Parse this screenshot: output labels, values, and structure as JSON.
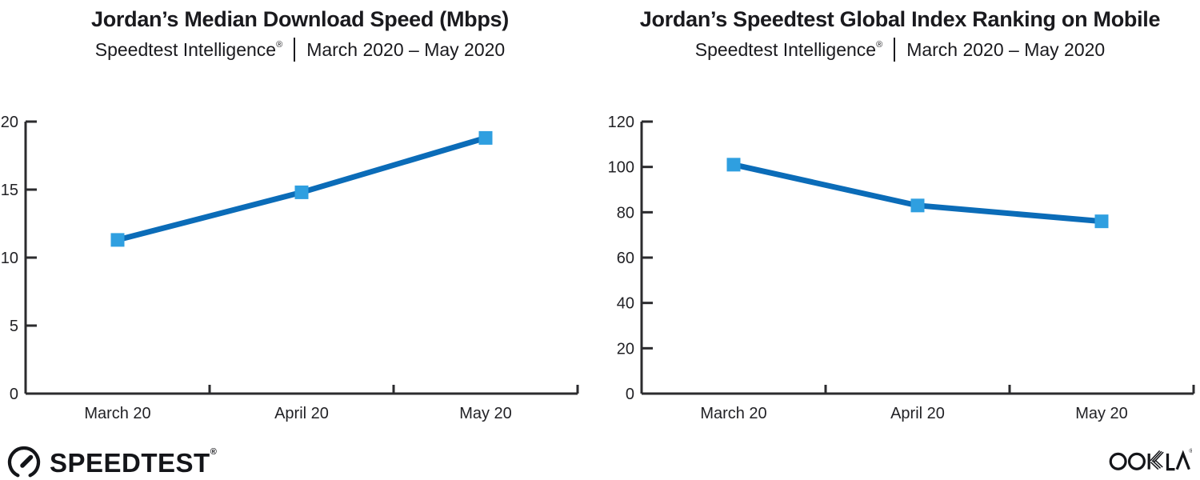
{
  "charts": [
    {
      "title": "Jordan’s Median Download Speed (Mbps)",
      "subtitle_brand": "Speedtest Intelligence",
      "subtitle_reg": "®",
      "subtitle_range": "March 2020 – May 2020"
    },
    {
      "title": "Jordan’s Speedtest Global Index Ranking on Mobile",
      "subtitle_brand": "Speedtest Intelligence",
      "subtitle_reg": "®",
      "subtitle_range": "March 2020 – May 2020"
    }
  ],
  "chart_data": [
    {
      "type": "line",
      "title": "Jordan’s Median Download Speed (Mbps)",
      "subtitle": "Speedtest Intelligence® | March 2020 – May 2020",
      "categories": [
        "March 20",
        "April 20",
        "May 20"
      ],
      "values": [
        11.3,
        14.8,
        18.8
      ],
      "xlabel": "",
      "ylabel": "",
      "ylim": [
        0,
        20
      ],
      "yticks": [
        0,
        5,
        10,
        15,
        20
      ],
      "grid": false,
      "legend": null,
      "marker": "square"
    },
    {
      "type": "line",
      "title": "Jordan’s Speedtest Global Index Ranking on Mobile",
      "subtitle": "Speedtest Intelligence® | March 2020 – May 2020",
      "categories": [
        "March 20",
        "April 20",
        "May 20"
      ],
      "values": [
        101,
        83,
        76
      ],
      "xlabel": "",
      "ylabel": "",
      "ylim": [
        0,
        120
      ],
      "yticks": [
        0,
        20,
        40,
        60,
        80,
        100,
        120
      ],
      "grid": false,
      "legend": null,
      "marker": "square"
    }
  ],
  "footer": {
    "speedtest_label": "SPEEDTEST",
    "speedtest_reg": "®",
    "ookla_label": "OOKLA",
    "ookla_reg": "®"
  },
  "colors": {
    "line": "#0b6cb8",
    "marker": "#2f9fe0",
    "axis": "#2b2b2e",
    "tick_text": "#222226",
    "logo_dark": "#141519"
  }
}
